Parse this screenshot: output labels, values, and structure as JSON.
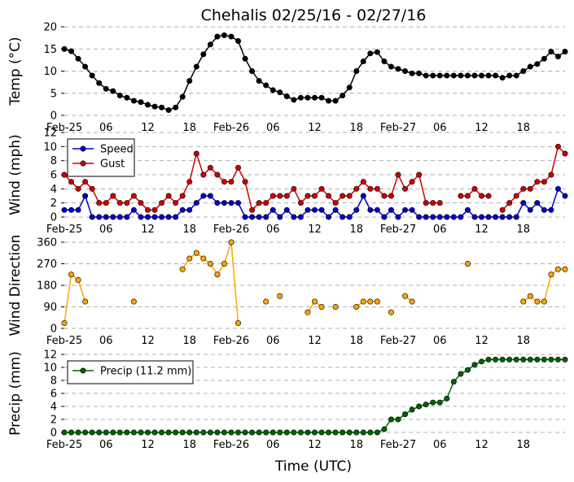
{
  "figure": {
    "title": "Chehalis 02/25/16 - 02/27/16",
    "xlabel": "Time (UTC)"
  },
  "colors": {
    "temp": "#000000",
    "speed": "#0000cc",
    "gust": "#cc0000",
    "direction": "#ffa500",
    "precip": "#006400",
    "grid": "#b0b0b0"
  },
  "x_ticks": [
    {
      "h": 0,
      "label": "Feb-25"
    },
    {
      "h": 6,
      "label": "06"
    },
    {
      "h": 12,
      "label": "12"
    },
    {
      "h": 18,
      "label": "18"
    },
    {
      "h": 24,
      "label": "Feb-26"
    },
    {
      "h": 30,
      "label": "06"
    },
    {
      "h": 36,
      "label": "12"
    },
    {
      "h": 42,
      "label": "18"
    },
    {
      "h": 48,
      "label": "Feb-27"
    },
    {
      "h": 54,
      "label": "06"
    },
    {
      "h": 60,
      "label": "12"
    },
    {
      "h": 66,
      "label": "18"
    }
  ],
  "chart_data": [
    {
      "type": "line",
      "ylabel": "Temp (°C)",
      "ylim": [
        0,
        20
      ],
      "yticks": [
        0,
        5,
        10,
        15,
        20
      ],
      "grid": true,
      "series": [
        {
          "key": "temp",
          "values": [
            15,
            14.5,
            12.8,
            11,
            9,
            7.3,
            6,
            5.5,
            4.5,
            4,
            3.3,
            3,
            2.4,
            2,
            1.8,
            1.2,
            1.8,
            4.2,
            7.8,
            11,
            13.8,
            16,
            17.8,
            18.1,
            17.8,
            16.8,
            12.8,
            10,
            7.8,
            6.8,
            5.7,
            5.2,
            4.3,
            3.5,
            4,
            4,
            4,
            4,
            3.3,
            3.3,
            4.5,
            6.3,
            10,
            12.2,
            14,
            14.3,
            12.2,
            11,
            10.5,
            10,
            9.5,
            9.5,
            9,
            9,
            9,
            9,
            9,
            9,
            9,
            9,
            9,
            9,
            9,
            8.5,
            9,
            9,
            10,
            11,
            11.6,
            12.8,
            14.4,
            13.3,
            14.4
          ]
        }
      ]
    },
    {
      "type": "line",
      "ylabel": "Wind (mph)",
      "ylim": [
        0,
        12
      ],
      "yticks": [
        0,
        2,
        4,
        6,
        8,
        10,
        12
      ],
      "grid": true,
      "legend": "top-left",
      "series": [
        {
          "key": "speed",
          "name": "Speed",
          "values": [
            1,
            1,
            1,
            3,
            0,
            0,
            0,
            0,
            0,
            0,
            1,
            0,
            0,
            0,
            0,
            0,
            0,
            1,
            1,
            2,
            3,
            3,
            2,
            2,
            2,
            2,
            0,
            0,
            0,
            0,
            1,
            0,
            1,
            0,
            0,
            1,
            1,
            1,
            0,
            1,
            0,
            0,
            1,
            3,
            1,
            1,
            0,
            1,
            0,
            1,
            1,
            0,
            0,
            0,
            0,
            0,
            0,
            0,
            1,
            0,
            0,
            0,
            0,
            0,
            0,
            0,
            2,
            1,
            2,
            1,
            1,
            4,
            3
          ]
        },
        {
          "key": "gust",
          "name": "Gust",
          "values": [
            6,
            5,
            4,
            5,
            4,
            2,
            2,
            3,
            2,
            2,
            3,
            2,
            1,
            1,
            2,
            3,
            2,
            3,
            5,
            9,
            6,
            7,
            6,
            5,
            5,
            7,
            5,
            1,
            2,
            2,
            3,
            3,
            3,
            4,
            2,
            3,
            3,
            4,
            3,
            2,
            3,
            3,
            4,
            5,
            4,
            4,
            3,
            3,
            6,
            4,
            5,
            6,
            2,
            2,
            2,
            null,
            null,
            3,
            3,
            4,
            3,
            3,
            null,
            1,
            2,
            3,
            4,
            4,
            5,
            5,
            6,
            10,
            9
          ]
        }
      ]
    },
    {
      "type": "scatter",
      "ylabel": "Wind Direction",
      "ylim": [
        0,
        360
      ],
      "yticks": [
        0,
        90,
        180,
        270,
        360
      ],
      "grid": true,
      "series": [
        {
          "key": "direction",
          "values": [
            22,
            225,
            202,
            112,
            null,
            null,
            null,
            null,
            null,
            null,
            112,
            null,
            null,
            null,
            null,
            null,
            null,
            247,
            292,
            315,
            292,
            270,
            225,
            270,
            360,
            22,
            null,
            null,
            null,
            112,
            null,
            135,
            null,
            null,
            null,
            67,
            112,
            90,
            null,
            90,
            null,
            null,
            90,
            112,
            112,
            112,
            null,
            67,
            null,
            135,
            112,
            null,
            null,
            null,
            null,
            null,
            null,
            null,
            270,
            null,
            null,
            null,
            null,
            null,
            null,
            null,
            112,
            135,
            112,
            112,
            225,
            247,
            247
          ]
        }
      ]
    },
    {
      "type": "line",
      "ylabel": "Precip (mm)",
      "ylim": [
        0,
        12
      ],
      "yticks": [
        0,
        2,
        4,
        6,
        8,
        10,
        12
      ],
      "grid": true,
      "legend": "top-left",
      "series": [
        {
          "key": "precip",
          "name": "Precip (11.2 mm)",
          "values": [
            0,
            0,
            0,
            0,
            0,
            0,
            0,
            0,
            0,
            0,
            0,
            0,
            0,
            0,
            0,
            0,
            0,
            0,
            0,
            0,
            0,
            0,
            0,
            0,
            0,
            0,
            0,
            0,
            0,
            0,
            0,
            0,
            0,
            0,
            0,
            0,
            0,
            0,
            0,
            0,
            0,
            0,
            0,
            0,
            0,
            0,
            0.5,
            2,
            2,
            2.8,
            3.5,
            4,
            4.3,
            4.6,
            4.6,
            5.2,
            7.8,
            9,
            9.6,
            10.4,
            10.9,
            11.2,
            11.2,
            11.2,
            11.2,
            11.2,
            11.2,
            11.2,
            11.2,
            11.2,
            11.2,
            11.2,
            11.2
          ]
        }
      ]
    }
  ]
}
